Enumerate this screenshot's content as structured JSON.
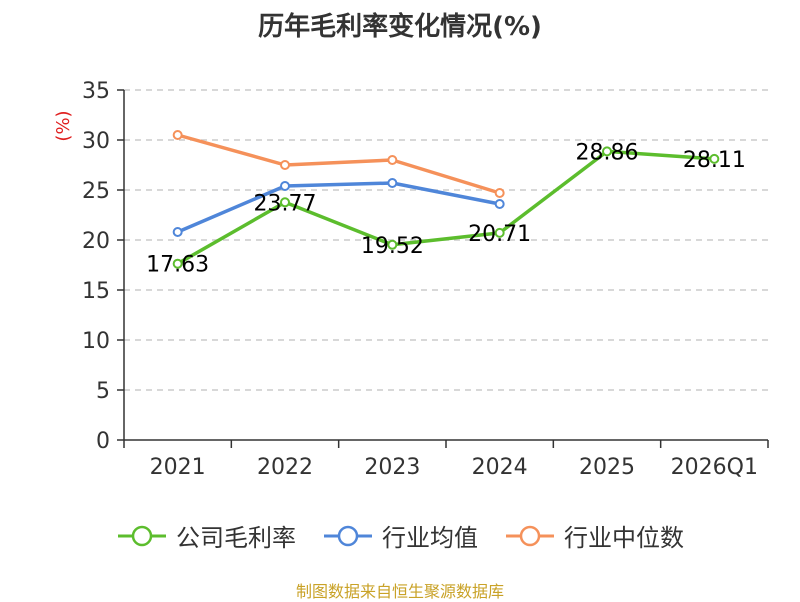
{
  "chart_data": {
    "type": "line",
    "title": "历年毛利率变化情况(%)",
    "ylabel": "(%)",
    "xlabel": "",
    "categories": [
      "2021",
      "2022",
      "2023",
      "2024",
      "2025",
      "2026Q1"
    ],
    "ylim": [
      0,
      35
    ],
    "yticks": [
      0,
      5,
      10,
      15,
      20,
      25,
      30,
      35
    ],
    "grid": true,
    "legend_position": "bottom",
    "series": [
      {
        "name": "公司毛利率",
        "color": "#5cbd2d",
        "values": [
          17.63,
          23.77,
          19.52,
          20.71,
          28.86,
          28.11
        ],
        "labels": [
          "17.63",
          "23.77",
          "19.52",
          "20.71",
          "28.86",
          "28.11"
        ]
      },
      {
        "name": "行业均值",
        "color": "#4f86d9",
        "values": [
          20.8,
          25.4,
          25.7,
          23.6,
          null,
          null
        ]
      },
      {
        "name": "行业中位数",
        "color": "#f5915a",
        "values": [
          30.5,
          27.5,
          28.0,
          24.7,
          null,
          null
        ]
      }
    ]
  },
  "footer": {
    "text": "制图数据来自恒生聚源数据库",
    "color": "#c9a227"
  },
  "colors": {
    "ylabel": "#e02020",
    "axis": "#333333",
    "grid": "#cccccc"
  }
}
